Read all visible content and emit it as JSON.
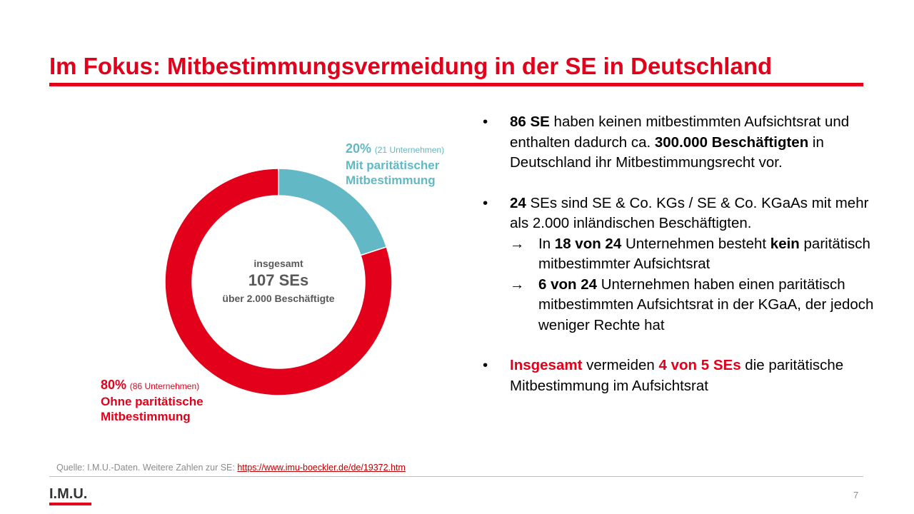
{
  "title": "Im Fokus: Mitbestimmungsvermeidung in der SE in Deutschland",
  "colors": {
    "accent": "#e2001a",
    "teal": "#62b8c4",
    "center_text": "#595959"
  },
  "chart_data": {
    "type": "pie",
    "variant": "donut",
    "title": "",
    "center": {
      "line1": "insgesamt",
      "line2": "107 SEs",
      "line3": "über 2.000 Beschäftigte"
    },
    "slices": [
      {
        "label_pct": "20%",
        "count": "(21 Unternehmen)",
        "line1": "Mit paritätischer",
        "line2": "Mitbestimmung",
        "value": 20,
        "color": "#62b8c4"
      },
      {
        "label_pct": "80%",
        "count": "(86 Unternehmen)",
        "line1": "Ohne paritätische",
        "line2": "Mitbestimmung",
        "value": 80,
        "color": "#e2001a"
      }
    ]
  },
  "bullets": {
    "b1": {
      "bold1": "86 SE",
      "t1": " haben keinen mitbestimmten Aufsichtsrat und enthalten dadurch ca. ",
      "bold2": "300.000 Beschäftigten",
      "t2": " in Deutschland ihr Mitbestimmungsrecht vor."
    },
    "b2": {
      "bold1": "24",
      "t1": " SEs sind SE & Co. KGs / SE & Co. KGaAs mit mehr als 2.000 inländischen Beschäftigten.",
      "sub1": {
        "t0": "In ",
        "bold1": "18 von 24",
        "t1": " Unternehmen besteht ",
        "bold2": "kein",
        "t2": " paritätisch mitbestimmter Aufsichtsrat"
      },
      "sub2": {
        "bold1": "6 von 24",
        "t1": " Unternehmen haben einen paritätisch mitbestimmten Aufsichtsrat in der KGaA, der jedoch weniger Rechte hat"
      }
    },
    "b3": {
      "red1": "Insgesamt",
      "t1": " vermeiden ",
      "red2": "4 von 5 SEs",
      "t2": " die paritätische Mitbestimmung im Aufsichtsrat"
    },
    "dot": "•",
    "arrow": "→"
  },
  "source": {
    "text": "Quelle: I.M.U.-Daten.  Weitere Zahlen zur SE: ",
    "link": "https://www.imu-boeckler.de/de/19372.htm"
  },
  "footer": {
    "logo": "I.M.U.",
    "page": "7"
  }
}
